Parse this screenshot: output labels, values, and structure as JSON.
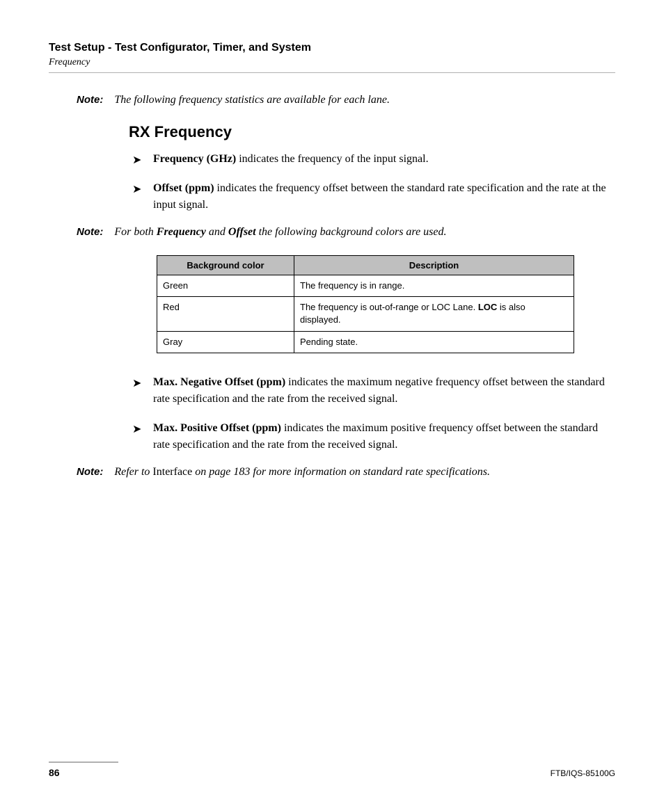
{
  "header": {
    "chapter": "Test Setup - Test Configurator, Timer, and System",
    "section": "Frequency"
  },
  "note1": {
    "label": "Note:",
    "text": "The following frequency statistics are available for each lane."
  },
  "heading": "RX Frequency",
  "bullets1": [
    {
      "term": "Frequency (GHz)",
      "text": " indicates the frequency of the input signal."
    },
    {
      "term": "Offset (ppm)",
      "text": " indicates the frequency offset between the standard rate specification and the rate at the input signal."
    }
  ],
  "note2": {
    "label": "Note:",
    "pre": "For both ",
    "b1": "Frequency",
    "mid": " and ",
    "b2": "Offset",
    "post": " the following background colors are used."
  },
  "table": {
    "headers": [
      "Background color",
      "Description"
    ],
    "rows": [
      {
        "c0": "Green",
        "c1_pre": "The frequency is in range.",
        "c1_bold": "",
        "c1_post": ""
      },
      {
        "c0": "Red",
        "c1_pre": "The frequency is out-of-range or LOC Lane. ",
        "c1_bold": "LOC",
        "c1_post": " is also displayed."
      },
      {
        "c0": "Gray",
        "c1_pre": "Pending state.",
        "c1_bold": "",
        "c1_post": ""
      }
    ],
    "header_bg": "#bfbfbf",
    "border_color": "#000000"
  },
  "bullets2": [
    {
      "term": "Max. Negative Offset (ppm)",
      "text": " indicates the maximum negative frequency offset between the standard rate specification and the rate from the received signal."
    },
    {
      "term": "Max. Positive Offset (ppm)",
      "text": " indicates the maximum positive frequency offset between the standard rate specification and the rate from the received signal."
    }
  ],
  "note3": {
    "label": "Note:",
    "pre": "Refer to ",
    "plain": "Interface",
    "post": " on page 183 for more information on standard rate specifications."
  },
  "footer": {
    "page": "86",
    "doc": "FTB/IQS-85100G"
  }
}
